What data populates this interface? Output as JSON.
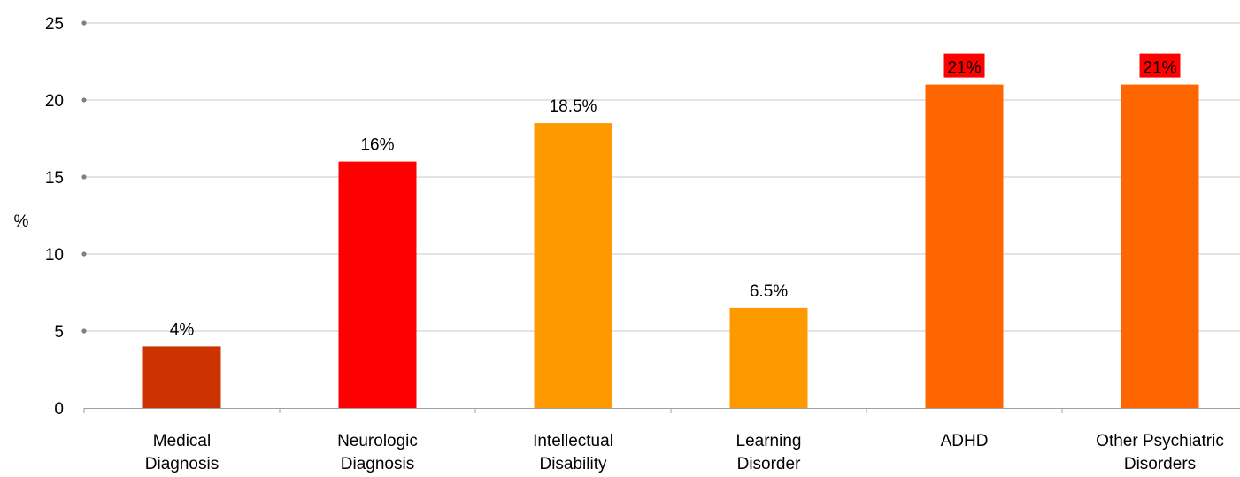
{
  "chart_data": {
    "type": "bar",
    "ylabel": "%",
    "xlabel": "",
    "title": "",
    "ylim": [
      0,
      25
    ],
    "yticks": [
      0,
      5,
      10,
      15,
      20,
      25
    ],
    "grid": true,
    "categories": [
      [
        "Medical",
        "Diagnosis"
      ],
      [
        "Neurologic",
        "Diagnosis"
      ],
      [
        "Intellectual",
        "Disability"
      ],
      [
        "Learning",
        "Disorder"
      ],
      [
        "ADHD"
      ],
      [
        "Other Psychiatric",
        "Disorders"
      ]
    ],
    "values": [
      4,
      16,
      18.5,
      6.5,
      21,
      21
    ],
    "data_labels": [
      "4%",
      "16%",
      "18.5%",
      "6.5%",
      "21%",
      "21%"
    ],
    "bar_colors": [
      "#cc3300",
      "#ff0000",
      "#ff9900",
      "#ff9900",
      "#ff6600",
      "#ff6600"
    ],
    "highlighted_label_bg": [
      "",
      "",
      "",
      "",
      "#ff0000",
      "#ff0000"
    ]
  }
}
